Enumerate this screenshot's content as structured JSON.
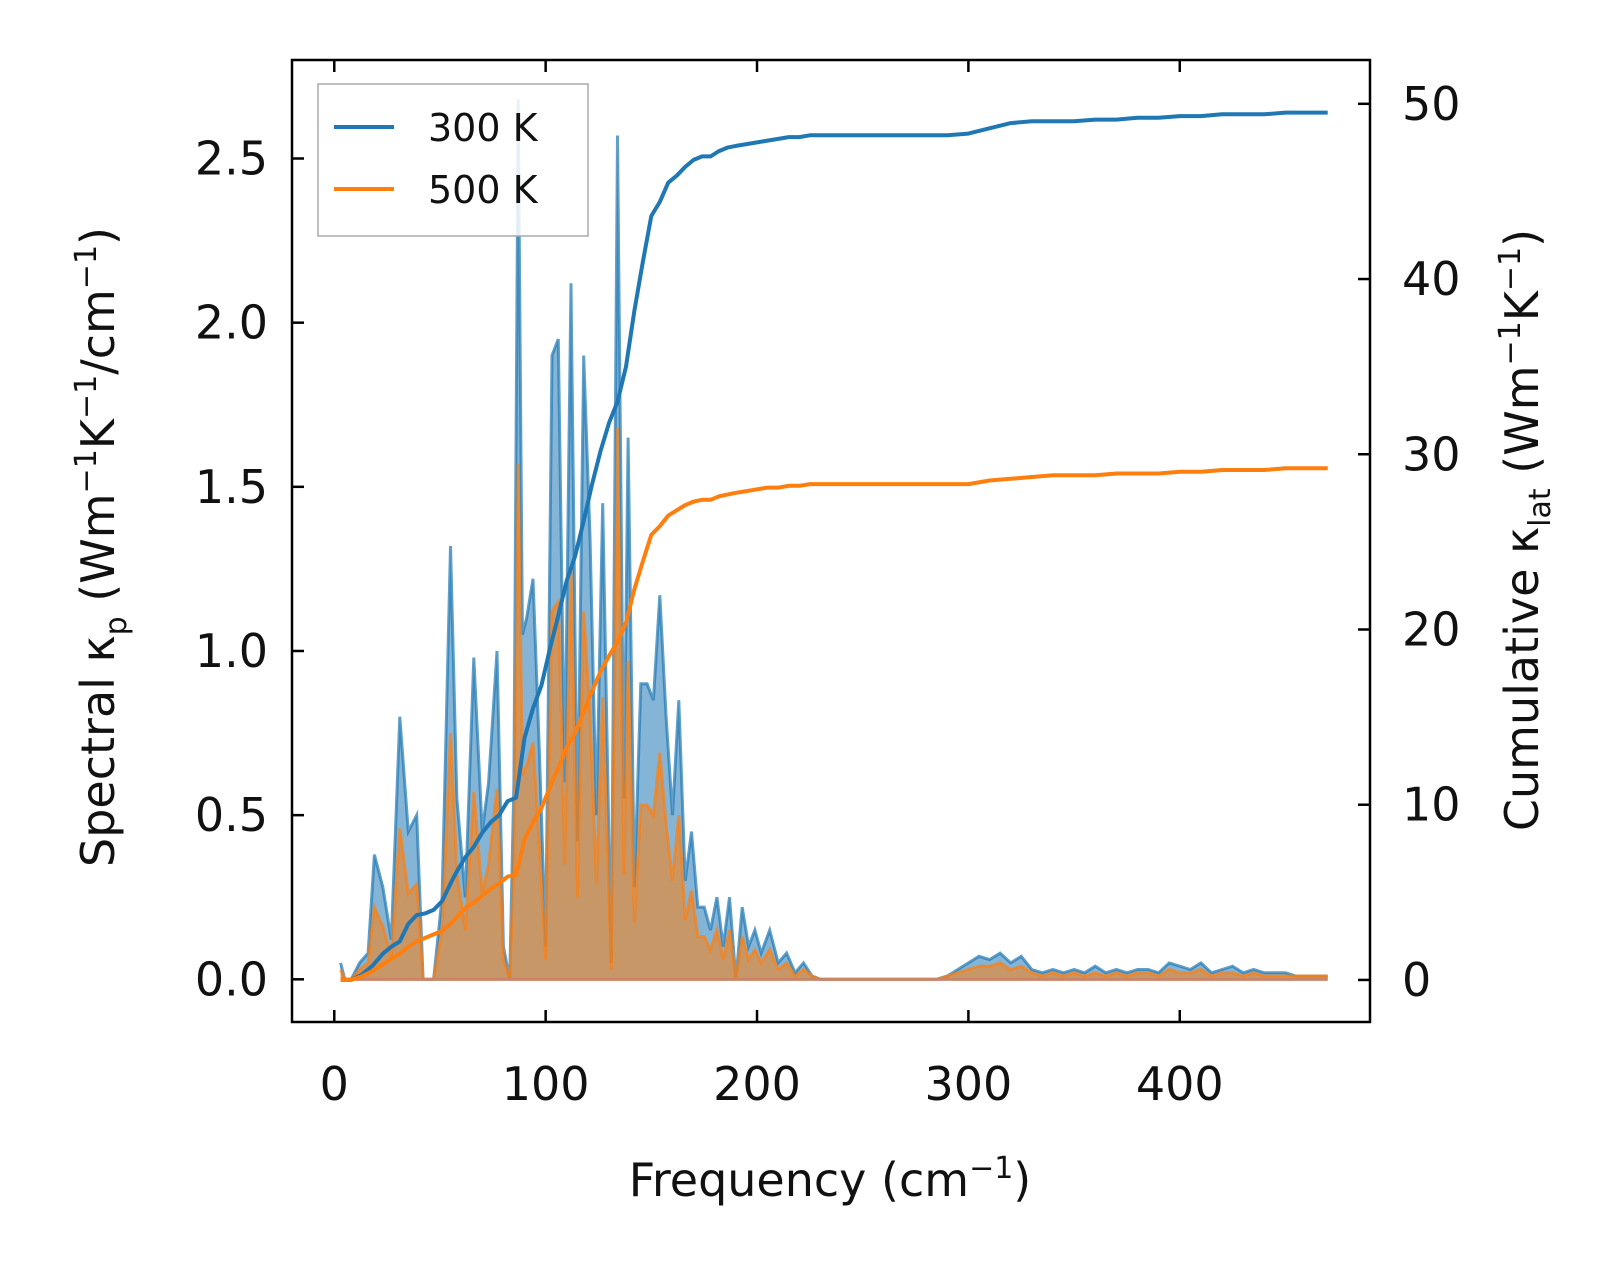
{
  "chart_data": {
    "type": "area",
    "xlabel": "Frequency (cm",
    "xlabel_sup": "−1",
    "xlabel_end": ")",
    "ylabel_left": {
      "prefix": "Spectral κ",
      "sub": "p",
      "mid1": " (Wm",
      "sup1": "−1",
      "mid2": "K",
      "sup2": "−1",
      "mid3": "/cm",
      "sup3": "−1",
      "end": ")"
    },
    "ylabel_right": {
      "prefix": "Cumulative κ",
      "sub": "lat",
      "mid1": " (Wm",
      "sup1": "−1",
      "mid2": "K",
      "sup2": "−1",
      "end": ")"
    },
    "xlim": [
      -20,
      490
    ],
    "ylim_left": [
      -0.13,
      2.8
    ],
    "ylim_right": [
      -2.4,
      52.5
    ],
    "xticks": [
      0,
      100,
      200,
      300,
      400
    ],
    "yticks_left": [
      0.0,
      0.5,
      1.0,
      1.5,
      2.0,
      2.5
    ],
    "yticks_left_labels": [
      "0.0",
      "0.5",
      "1.0",
      "1.5",
      "2.0",
      "2.5"
    ],
    "yticks_right": [
      0,
      10,
      20,
      30,
      40,
      50
    ],
    "legend": {
      "position": "top-left",
      "entries": [
        {
          "label": "300 K",
          "color": "#1f77b4"
        },
        {
          "label": "500 K",
          "color": "#ff7f0e"
        }
      ]
    },
    "series": [
      {
        "name": "300 K",
        "color": "#1f77b4",
        "spectral_x": [
          3,
          5,
          8,
          12,
          16,
          19,
          23,
          27,
          31,
          35,
          39,
          42,
          47,
          51,
          55,
          58,
          62,
          66,
          70,
          73,
          77,
          80,
          83,
          85,
          87,
          89,
          91,
          94,
          97,
          100,
          103,
          106,
          109,
          112,
          115,
          118,
          121,
          124,
          127,
          131,
          134,
          137,
          139,
          142,
          145,
          148,
          151,
          154,
          157,
          160,
          163,
          166,
          169,
          172,
          175,
          178,
          181,
          184,
          187,
          190,
          193,
          196,
          199,
          202,
          206,
          210,
          214,
          218,
          222,
          226,
          230,
          235,
          240,
          250,
          260,
          270,
          280,
          285,
          290,
          295,
          300,
          305,
          310,
          315,
          320,
          325,
          330,
          335,
          340,
          345,
          350,
          355,
          360,
          365,
          370,
          375,
          380,
          385,
          390,
          395,
          400,
          405,
          410,
          415,
          420,
          425,
          430,
          435,
          440,
          445,
          450,
          455,
          460,
          465,
          470
        ],
        "spectral_y": [
          0.05,
          0.0,
          0.0,
          0.05,
          0.08,
          0.38,
          0.28,
          0.12,
          0.8,
          0.45,
          0.5,
          0.0,
          0.0,
          0.25,
          1.32,
          0.55,
          0.25,
          0.98,
          0.45,
          0.6,
          1.0,
          0.1,
          0.0,
          0.6,
          2.68,
          1.05,
          1.1,
          1.22,
          0.7,
          0.1,
          1.9,
          1.95,
          0.6,
          2.12,
          0.42,
          1.9,
          1.35,
          0.5,
          1.45,
          0.05,
          2.57,
          0.55,
          1.65,
          0.28,
          0.9,
          0.9,
          0.85,
          1.17,
          0.8,
          0.5,
          0.85,
          0.3,
          0.45,
          0.22,
          0.22,
          0.15,
          0.25,
          0.1,
          0.25,
          0.0,
          0.22,
          0.1,
          0.15,
          0.08,
          0.15,
          0.05,
          0.08,
          0.02,
          0.05,
          0.01,
          0.0,
          0.0,
          0.0,
          0.0,
          0.0,
          0.0,
          0.0,
          0.0,
          0.01,
          0.03,
          0.05,
          0.07,
          0.06,
          0.08,
          0.05,
          0.07,
          0.03,
          0.02,
          0.03,
          0.02,
          0.03,
          0.02,
          0.04,
          0.02,
          0.03,
          0.02,
          0.03,
          0.03,
          0.02,
          0.05,
          0.04,
          0.03,
          0.05,
          0.02,
          0.03,
          0.04,
          0.02,
          0.03,
          0.02,
          0.02,
          0.02,
          0.01,
          0.01,
          0.01,
          0.01
        ],
        "cumulative_x": [
          3,
          8,
          13,
          18,
          23,
          27,
          31,
          35,
          39,
          43,
          47,
          51,
          55,
          58,
          62,
          66,
          70,
          74,
          78,
          82,
          86,
          90,
          94,
          98,
          102,
          106,
          110,
          114,
          118,
          122,
          126,
          130,
          134,
          138,
          142,
          146,
          150,
          154,
          158,
          162,
          166,
          170,
          174,
          178,
          182,
          186,
          190,
          195,
          200,
          205,
          210,
          215,
          220,
          225,
          230,
          240,
          250,
          260,
          270,
          280,
          290,
          300,
          310,
          320,
          330,
          340,
          350,
          360,
          370,
          380,
          390,
          400,
          410,
          420,
          430,
          440,
          450,
          460,
          470
        ],
        "cumulative_y": [
          0,
          0,
          0.3,
          0.8,
          1.5,
          1.9,
          2.2,
          3.2,
          3.7,
          3.8,
          4.0,
          4.5,
          5.5,
          6.2,
          7.0,
          7.6,
          8.4,
          9.0,
          9.4,
          10.2,
          10.4,
          13.8,
          15.5,
          16.8,
          18.9,
          20.8,
          22.8,
          24.2,
          26.2,
          28.3,
          30.2,
          31.8,
          33.0,
          35.0,
          38.2,
          41.0,
          43.6,
          44.4,
          45.5,
          45.9,
          46.4,
          46.8,
          47.0,
          47.0,
          47.3,
          47.5,
          47.6,
          47.7,
          47.8,
          47.9,
          48.0,
          48.1,
          48.1,
          48.2,
          48.2,
          48.2,
          48.2,
          48.2,
          48.2,
          48.2,
          48.2,
          48.3,
          48.6,
          48.9,
          49.0,
          49.0,
          49.0,
          49.1,
          49.1,
          49.2,
          49.2,
          49.3,
          49.3,
          49.4,
          49.4,
          49.4,
          49.5,
          49.5,
          49.5
        ]
      },
      {
        "name": "500 K",
        "color": "#ff7f0e",
        "spectral_x": [
          3,
          5,
          8,
          12,
          16,
          19,
          23,
          27,
          31,
          35,
          39,
          42,
          47,
          51,
          55,
          58,
          62,
          66,
          70,
          73,
          77,
          80,
          83,
          85,
          87,
          89,
          91,
          94,
          97,
          100,
          103,
          106,
          109,
          112,
          115,
          118,
          121,
          124,
          127,
          131,
          134,
          137,
          139,
          142,
          145,
          148,
          151,
          154,
          157,
          160,
          163,
          166,
          169,
          172,
          175,
          178,
          181,
          184,
          187,
          190,
          193,
          196,
          199,
          202,
          206,
          210,
          214,
          218,
          222,
          226,
          230,
          235,
          240,
          250,
          260,
          270,
          280,
          285,
          290,
          295,
          300,
          305,
          310,
          315,
          320,
          325,
          330,
          335,
          340,
          345,
          350,
          355,
          360,
          365,
          370,
          375,
          380,
          385,
          390,
          395,
          400,
          405,
          410,
          415,
          420,
          425,
          430,
          435,
          440,
          445,
          450,
          455,
          460,
          465,
          470
        ],
        "spectral_y": [
          0.03,
          0.0,
          0.0,
          0.03,
          0.05,
          0.22,
          0.16,
          0.07,
          0.46,
          0.26,
          0.29,
          0.0,
          0.0,
          0.15,
          0.75,
          0.32,
          0.15,
          0.57,
          0.26,
          0.35,
          0.58,
          0.06,
          0.0,
          0.35,
          1.57,
          0.62,
          0.65,
          0.72,
          0.41,
          0.06,
          1.12,
          1.15,
          0.35,
          1.25,
          0.25,
          1.12,
          0.8,
          0.29,
          0.86,
          0.03,
          1.68,
          0.32,
          0.97,
          0.17,
          0.53,
          0.53,
          0.5,
          0.69,
          0.47,
          0.3,
          0.5,
          0.18,
          0.27,
          0.13,
          0.13,
          0.09,
          0.15,
          0.06,
          0.15,
          0.0,
          0.13,
          0.06,
          0.09,
          0.05,
          0.09,
          0.03,
          0.05,
          0.01,
          0.03,
          0.01,
          0.0,
          0.0,
          0.0,
          0.0,
          0.0,
          0.0,
          0.0,
          0.0,
          0.01,
          0.02,
          0.03,
          0.04,
          0.04,
          0.05,
          0.03,
          0.04,
          0.02,
          0.01,
          0.02,
          0.01,
          0.02,
          0.01,
          0.02,
          0.01,
          0.02,
          0.01,
          0.02,
          0.02,
          0.01,
          0.03,
          0.02,
          0.02,
          0.03,
          0.01,
          0.02,
          0.02,
          0.01,
          0.02,
          0.01,
          0.01,
          0.01,
          0.01,
          0.01,
          0.01,
          0.01
        ],
        "cumulative_x": [
          3,
          8,
          13,
          18,
          23,
          27,
          31,
          35,
          39,
          43,
          47,
          51,
          55,
          58,
          62,
          66,
          70,
          74,
          78,
          82,
          86,
          90,
          94,
          98,
          102,
          106,
          110,
          114,
          118,
          122,
          126,
          130,
          134,
          138,
          142,
          146,
          150,
          154,
          158,
          162,
          166,
          170,
          174,
          178,
          182,
          186,
          190,
          195,
          200,
          205,
          210,
          215,
          220,
          225,
          230,
          240,
          250,
          260,
          270,
          280,
          290,
          300,
          310,
          320,
          330,
          340,
          350,
          360,
          370,
          380,
          390,
          400,
          410,
          420,
          430,
          440,
          450,
          460,
          470
        ],
        "cumulative_y": [
          0,
          0,
          0.2,
          0.5,
          0.9,
          1.2,
          1.5,
          1.9,
          2.2,
          2.4,
          2.6,
          2.8,
          3.2,
          3.6,
          4.1,
          4.4,
          4.8,
          5.2,
          5.5,
          5.9,
          6.0,
          8.0,
          9.0,
          9.8,
          11.0,
          12.1,
          13.3,
          14.1,
          15.3,
          16.5,
          17.6,
          18.5,
          19.3,
          20.4,
          22.3,
          23.9,
          25.4,
          25.9,
          26.5,
          26.8,
          27.1,
          27.3,
          27.4,
          27.4,
          27.6,
          27.7,
          27.8,
          27.9,
          28.0,
          28.1,
          28.1,
          28.2,
          28.2,
          28.3,
          28.3,
          28.3,
          28.3,
          28.3,
          28.3,
          28.3,
          28.3,
          28.3,
          28.5,
          28.6,
          28.7,
          28.8,
          28.8,
          28.8,
          28.9,
          28.9,
          28.9,
          29.0,
          29.0,
          29.1,
          29.1,
          29.1,
          29.2,
          29.2,
          29.2
        ]
      }
    ]
  }
}
